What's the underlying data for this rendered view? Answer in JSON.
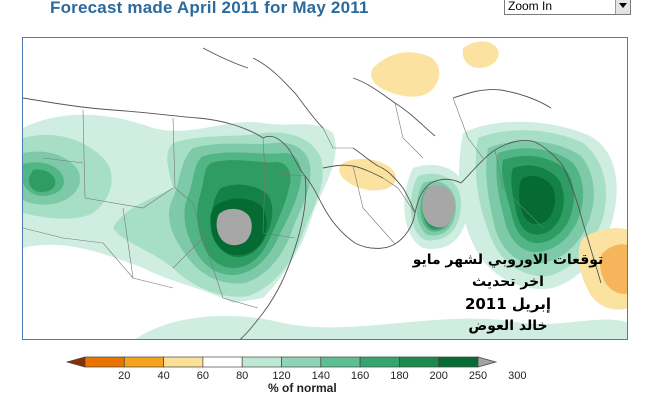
{
  "header": {
    "title": "Forecast made April 2011 for May 2011"
  },
  "zoom": {
    "value": "Zoom In"
  },
  "overlay": {
    "line1": "توقعات الاوروبي لشهر مايو",
    "line2": "اخر تحديث",
    "line3": "إبريل 2011",
    "line4": "خالد العوض"
  },
  "legend": {
    "unit": "% of normal",
    "ticks": [
      "20",
      "40",
      "60",
      "80",
      "120",
      "140",
      "160",
      "180",
      "200",
      "250",
      "300"
    ],
    "colors": [
      "#8b2e00",
      "#e87400",
      "#f5a31a",
      "#fbe098",
      "#ffffff",
      "#bfe7d6",
      "#8fd3b8",
      "#5ebf94",
      "#35a56f",
      "#1b8a4d",
      "#076b34",
      "#a3a3a3"
    ]
  },
  "map_colors": {
    "c120": "#cfeee1",
    "c140": "#a7dfc6",
    "c160": "#7ecaa8",
    "c180": "#52b585",
    "c200": "#2e9c63",
    "c250": "#138246",
    "c300": "#066b33",
    "c300plus": "#a7a7a7",
    "c80": "#fbe2a0",
    "c60": "#f6b55a"
  }
}
